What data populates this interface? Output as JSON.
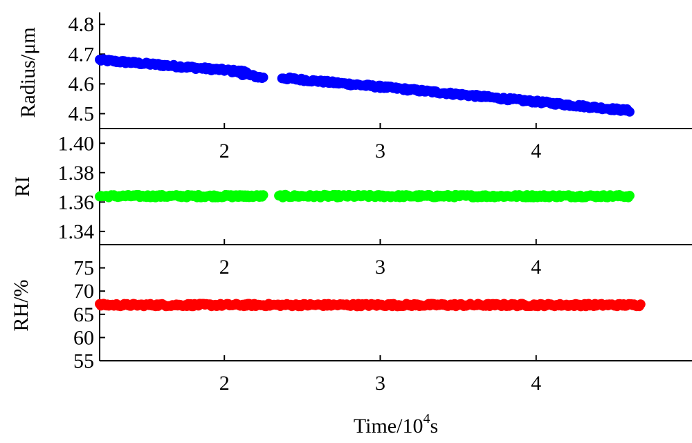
{
  "chart_data": [
    {
      "type": "scatter",
      "ylabel": "Radius/μm",
      "xlim": [
        1.2,
        5.0
      ],
      "ylim": [
        4.45,
        4.84
      ],
      "yticks": [
        "4.5",
        "4.6",
        "4.7",
        "4.8"
      ],
      "xticks": [
        "2",
        "3",
        "4"
      ],
      "series": [
        {
          "color": "#0000ff",
          "segments": [
            {
              "x": [
                1.2,
                2.15
              ],
              "y": [
                4.68,
                4.64
              ]
            },
            {
              "x": [
                2.05,
                2.25
              ],
              "y": [
                4.64,
                4.62
              ]
            },
            {
              "x": [
                2.37,
                3.0
              ],
              "y": [
                4.62,
                4.59
              ]
            },
            {
              "x": [
                3.0,
                4.6
              ],
              "y": [
                4.59,
                4.51
              ]
            }
          ]
        }
      ]
    },
    {
      "type": "scatter",
      "ylabel": "RI",
      "xlim": [
        1.2,
        5.0
      ],
      "ylim": [
        1.331,
        1.41
      ],
      "yticks": [
        "1.34",
        "1.36",
        "1.38",
        "1.40"
      ],
      "xticks": [
        "2",
        "3",
        "4"
      ],
      "series": [
        {
          "color": "#00ff00",
          "segments": [
            {
              "x": [
                1.2,
                2.15
              ],
              "y": [
                1.364,
                1.364
              ]
            },
            {
              "x": [
                2.05,
                2.25
              ],
              "y": [
                1.364,
                1.364
              ]
            },
            {
              "x": [
                2.35,
                4.6
              ],
              "y": [
                1.364,
                1.364
              ]
            }
          ]
        }
      ]
    },
    {
      "type": "scatter",
      "ylabel": "RH/%",
      "xlabel": "Time/10",
      "xlabel_sup": "4",
      "xlabel_suffix": "s",
      "xlim": [
        1.2,
        5.0
      ],
      "ylim": [
        55,
        80
      ],
      "yticks": [
        "55",
        "60",
        "65",
        "70",
        "75"
      ],
      "xticks": [
        "2",
        "3",
        "4"
      ],
      "series": [
        {
          "color": "#ff0000",
          "segments": [
            {
              "x": [
                1.2,
                4.67
              ],
              "y": [
                67,
                67
              ]
            }
          ]
        }
      ]
    }
  ]
}
